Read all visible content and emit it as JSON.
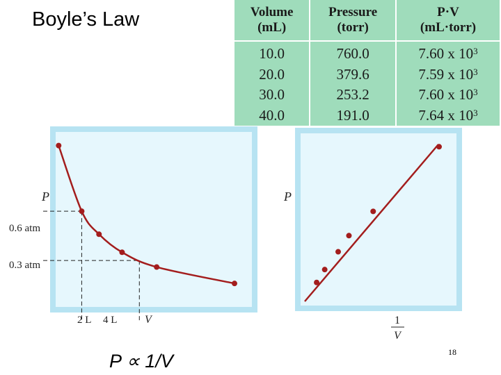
{
  "slide": {
    "title": "Boyle’s Law",
    "proportion": "P ∝ 1/V",
    "page_number": "18"
  },
  "table": {
    "headers": [
      {
        "line1": "Volume",
        "line2": "(mL)"
      },
      {
        "line1": "Pressure",
        "line2": "(torr)"
      },
      {
        "line1": "P·V",
        "line2": "(mL·torr)"
      }
    ],
    "rows": [
      {
        "volume": "10.0",
        "pressure": "760.0",
        "pv": "7.60 x 10",
        "exp": "3"
      },
      {
        "volume": "20.0",
        "pressure": "379.6",
        "pv": "7.59 x 10",
        "exp": "3"
      },
      {
        "volume": "30.0",
        "pressure": "253.2",
        "pv": "7.60 x 10",
        "exp": "3"
      },
      {
        "volume": "40.0",
        "pressure": "191.0",
        "pv": "7.64 x 10",
        "exp": "3"
      }
    ]
  },
  "colors": {
    "panel_background": "#e6f7fd",
    "panel_border": "#b7e3f2",
    "curve": "#a31d1d",
    "table_background": "#9fdcbb"
  },
  "chart_data": [
    {
      "type": "line",
      "title": "P vs V",
      "ylabel": "P",
      "xlabel": "V",
      "y_ticks": [
        "0.6 atm",
        "0.3 atm"
      ],
      "x_ticks": [
        "2 L",
        "4 L"
      ],
      "x": [
        1.2,
        2,
        2.6,
        3.4,
        4.6,
        7.3
      ],
      "y": [
        1.0,
        0.6,
        0.46,
        0.35,
        0.26,
        0.16
      ],
      "xlim": [
        1,
        8
      ],
      "ylim": [
        0,
        1.1
      ],
      "guides": [
        {
          "x": 2,
          "y": 0.6
        },
        {
          "x": 4,
          "y": 0.3
        }
      ]
    },
    {
      "type": "line",
      "title": "P vs 1/V",
      "ylabel": "P",
      "xlabel_numerator": "1",
      "xlabel_denominator": "V",
      "x": [
        0.14,
        0.2,
        0.3,
        0.38,
        0.56,
        1.05
      ],
      "y": [
        0.16,
        0.24,
        0.35,
        0.45,
        0.6,
        1.0
      ],
      "xlim": [
        0,
        1.2
      ],
      "ylim": [
        0,
        1.1
      ]
    }
  ]
}
